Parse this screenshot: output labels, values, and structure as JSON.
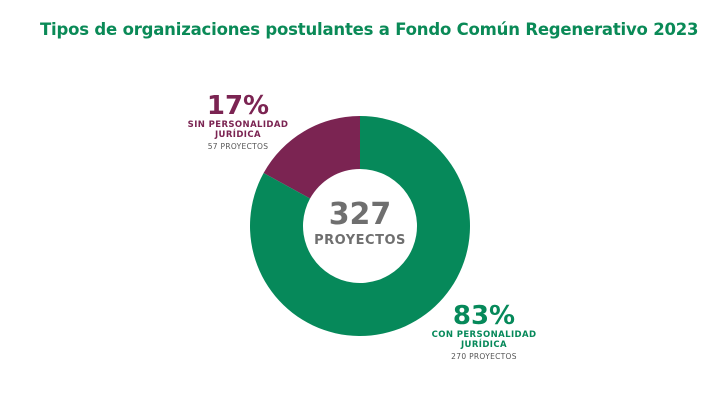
{
  "title": "Tipos de organizaciones postulantes a Fondo Común Regenerativo 2023",
  "chart_data": {
    "type": "pie",
    "variant": "donut",
    "title": "Tipos de organizaciones postulantes a Fondo Común Regenerativo 2023",
    "center": {
      "value": "327",
      "label": "PROYECTOS"
    },
    "slices": [
      {
        "label": "SIN PERSONALIDAD JURÍDICA",
        "percent": 17,
        "percent_label": "17%",
        "count": 57,
        "count_label": "57 PROYECTOS",
        "color": "#7b2452"
      },
      {
        "label": "CON PERSONALIDAD JURÍDICA",
        "percent": 83,
        "percent_label": "83%",
        "count": 270,
        "count_label": "270 PROYECTOS",
        "color": "#06895a"
      }
    ],
    "legend": "none"
  },
  "colors": {
    "title": "#0a8a57",
    "center_text": "#6f6f6f"
  }
}
